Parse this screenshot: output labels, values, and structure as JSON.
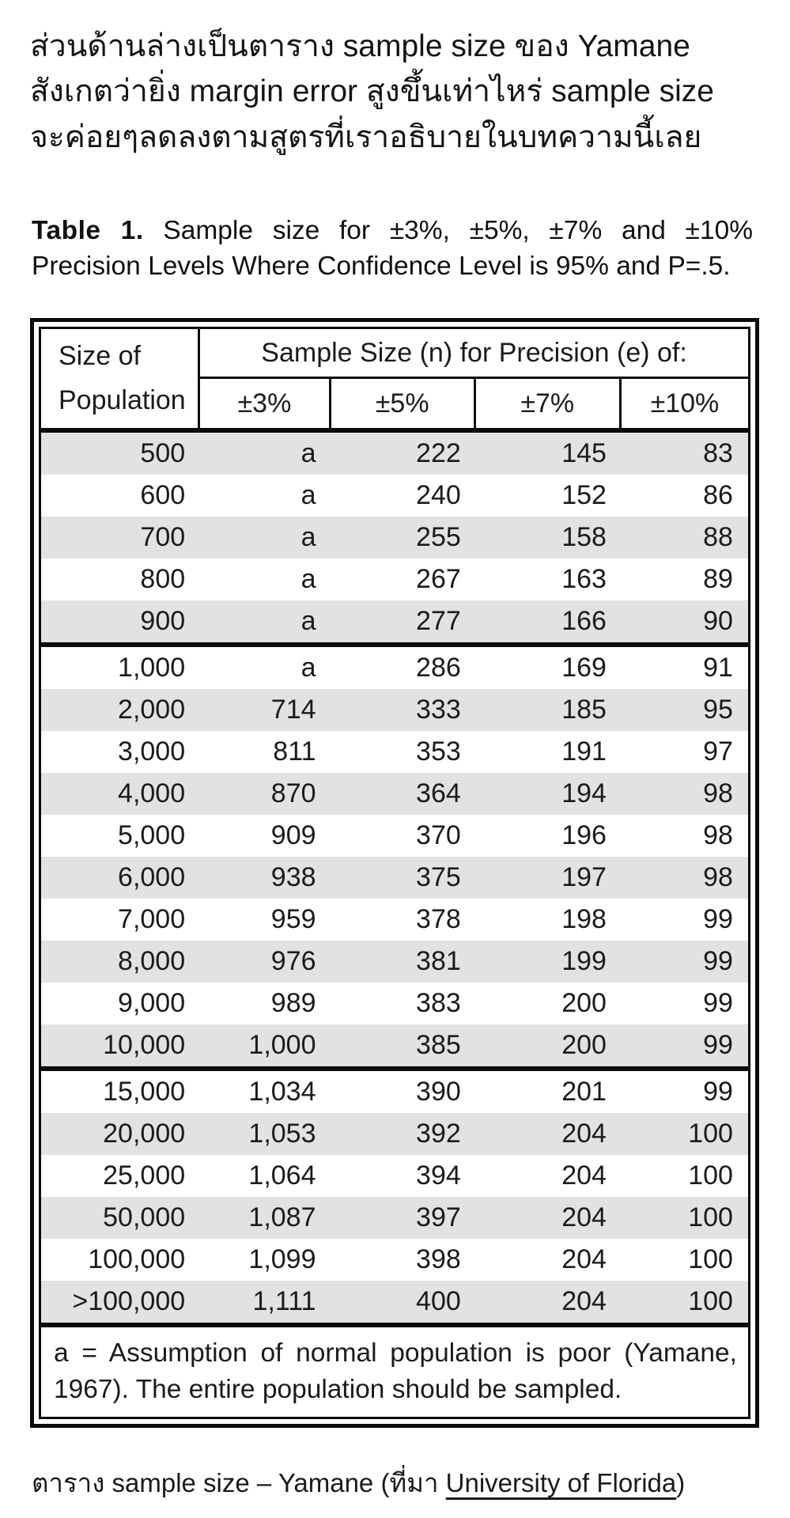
{
  "page": {
    "background": "#ffffff"
  },
  "colors": {
    "row_shade": "#e2e2e2",
    "border": "#0a0a0a",
    "text": "#1b1b1b"
  },
  "intro": {
    "lines": [
      "ส่วนด้านล่างเป็นตาราง sample size ของ Yamane",
      "สังเกตว่ายิ่ง margin error สูงขึ้นเท่าไหร่ sample size",
      "จะค่อยๆลดลงตามสูตรที่เราอธิบายในบทความนี้เลย"
    ]
  },
  "table": {
    "title": {
      "label": "Table 1.",
      "text": "Sample size for ±3%, ±5%, ±7% and ±10% Precision Levels Where Confidence Level is 95% and P=.5."
    },
    "header": {
      "row_label_line1": "Size of",
      "row_label_line2": "Population",
      "group_label": "Sample Size (n) for Precision (e) of:",
      "columns": [
        "±3%",
        "±5%",
        "±7%",
        "±10%"
      ]
    },
    "sections": [
      {
        "rows": [
          [
            "500",
            "a",
            "222",
            "145",
            "83"
          ],
          [
            "600",
            "a",
            "240",
            "152",
            "86"
          ],
          [
            "700",
            "a",
            "255",
            "158",
            "88"
          ],
          [
            "800",
            "a",
            "267",
            "163",
            "89"
          ],
          [
            "900",
            "a",
            "277",
            "166",
            "90"
          ]
        ]
      },
      {
        "rows": [
          [
            "1,000",
            "a",
            "286",
            "169",
            "91"
          ],
          [
            "2,000",
            "714",
            "333",
            "185",
            "95"
          ],
          [
            "3,000",
            "811",
            "353",
            "191",
            "97"
          ],
          [
            "4,000",
            "870",
            "364",
            "194",
            "98"
          ],
          [
            "5,000",
            "909",
            "370",
            "196",
            "98"
          ],
          [
            "6,000",
            "938",
            "375",
            "197",
            "98"
          ],
          [
            "7,000",
            "959",
            "378",
            "198",
            "99"
          ],
          [
            "8,000",
            "976",
            "381",
            "199",
            "99"
          ],
          [
            "9,000",
            "989",
            "383",
            "200",
            "99"
          ],
          [
            "10,000",
            "1,000",
            "385",
            "200",
            "99"
          ]
        ]
      },
      {
        "rows": [
          [
            "15,000",
            "1,034",
            "390",
            "201",
            "99"
          ],
          [
            "20,000",
            "1,053",
            "392",
            "204",
            "100"
          ],
          [
            "25,000",
            "1,064",
            "394",
            "204",
            "100"
          ],
          [
            "50,000",
            "1,087",
            "397",
            "204",
            "100"
          ],
          [
            "100,000",
            "1,099",
            "398",
            "204",
            "100"
          ],
          [
            ">100,000",
            "1,111",
            "400",
            "204",
            "100"
          ]
        ]
      }
    ],
    "footnote": "a = Assumption of normal population is poor (Yamane, 1967).  The entire population should be sampled."
  },
  "caption": {
    "prefix": "ตาราง sample size – Yamane (ที่มา ",
    "link_text": "University of Florida",
    "suffix": ")"
  }
}
